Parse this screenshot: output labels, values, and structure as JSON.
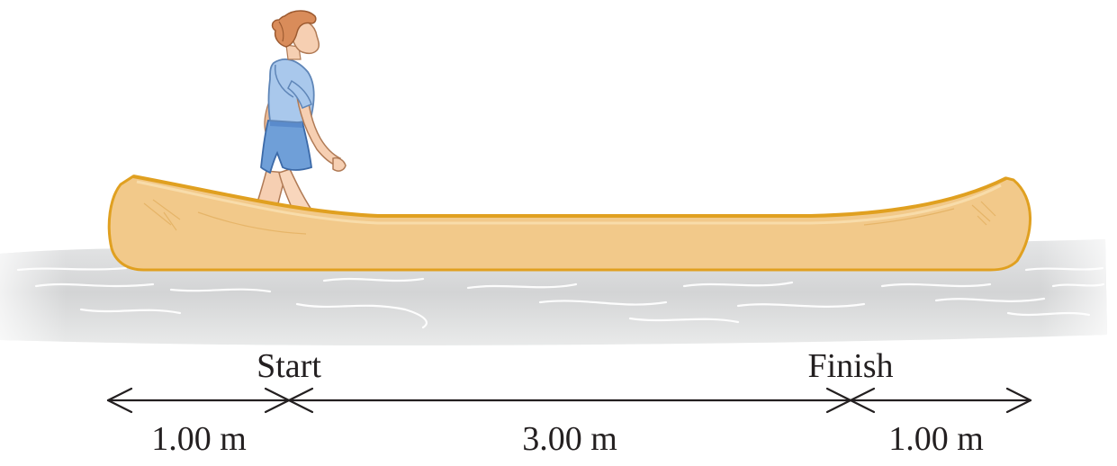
{
  "labels": {
    "start": "Start",
    "finish": "Finish"
  },
  "dimensions": [
    {
      "id": "left",
      "value": "1.00 m"
    },
    {
      "id": "middle",
      "value": "3.00 m"
    },
    {
      "id": "right",
      "value": "1.00 m"
    }
  ],
  "colors": {
    "canoe_fill": "#f2c98a",
    "canoe_edge": "#e0a020",
    "water": "#d7d8d9",
    "shirt": "#a9c8ec",
    "shorts": "#6f9fd8",
    "skin": "#f6cfb2",
    "hair": "#d98c5a",
    "arrow": "#231f20"
  }
}
